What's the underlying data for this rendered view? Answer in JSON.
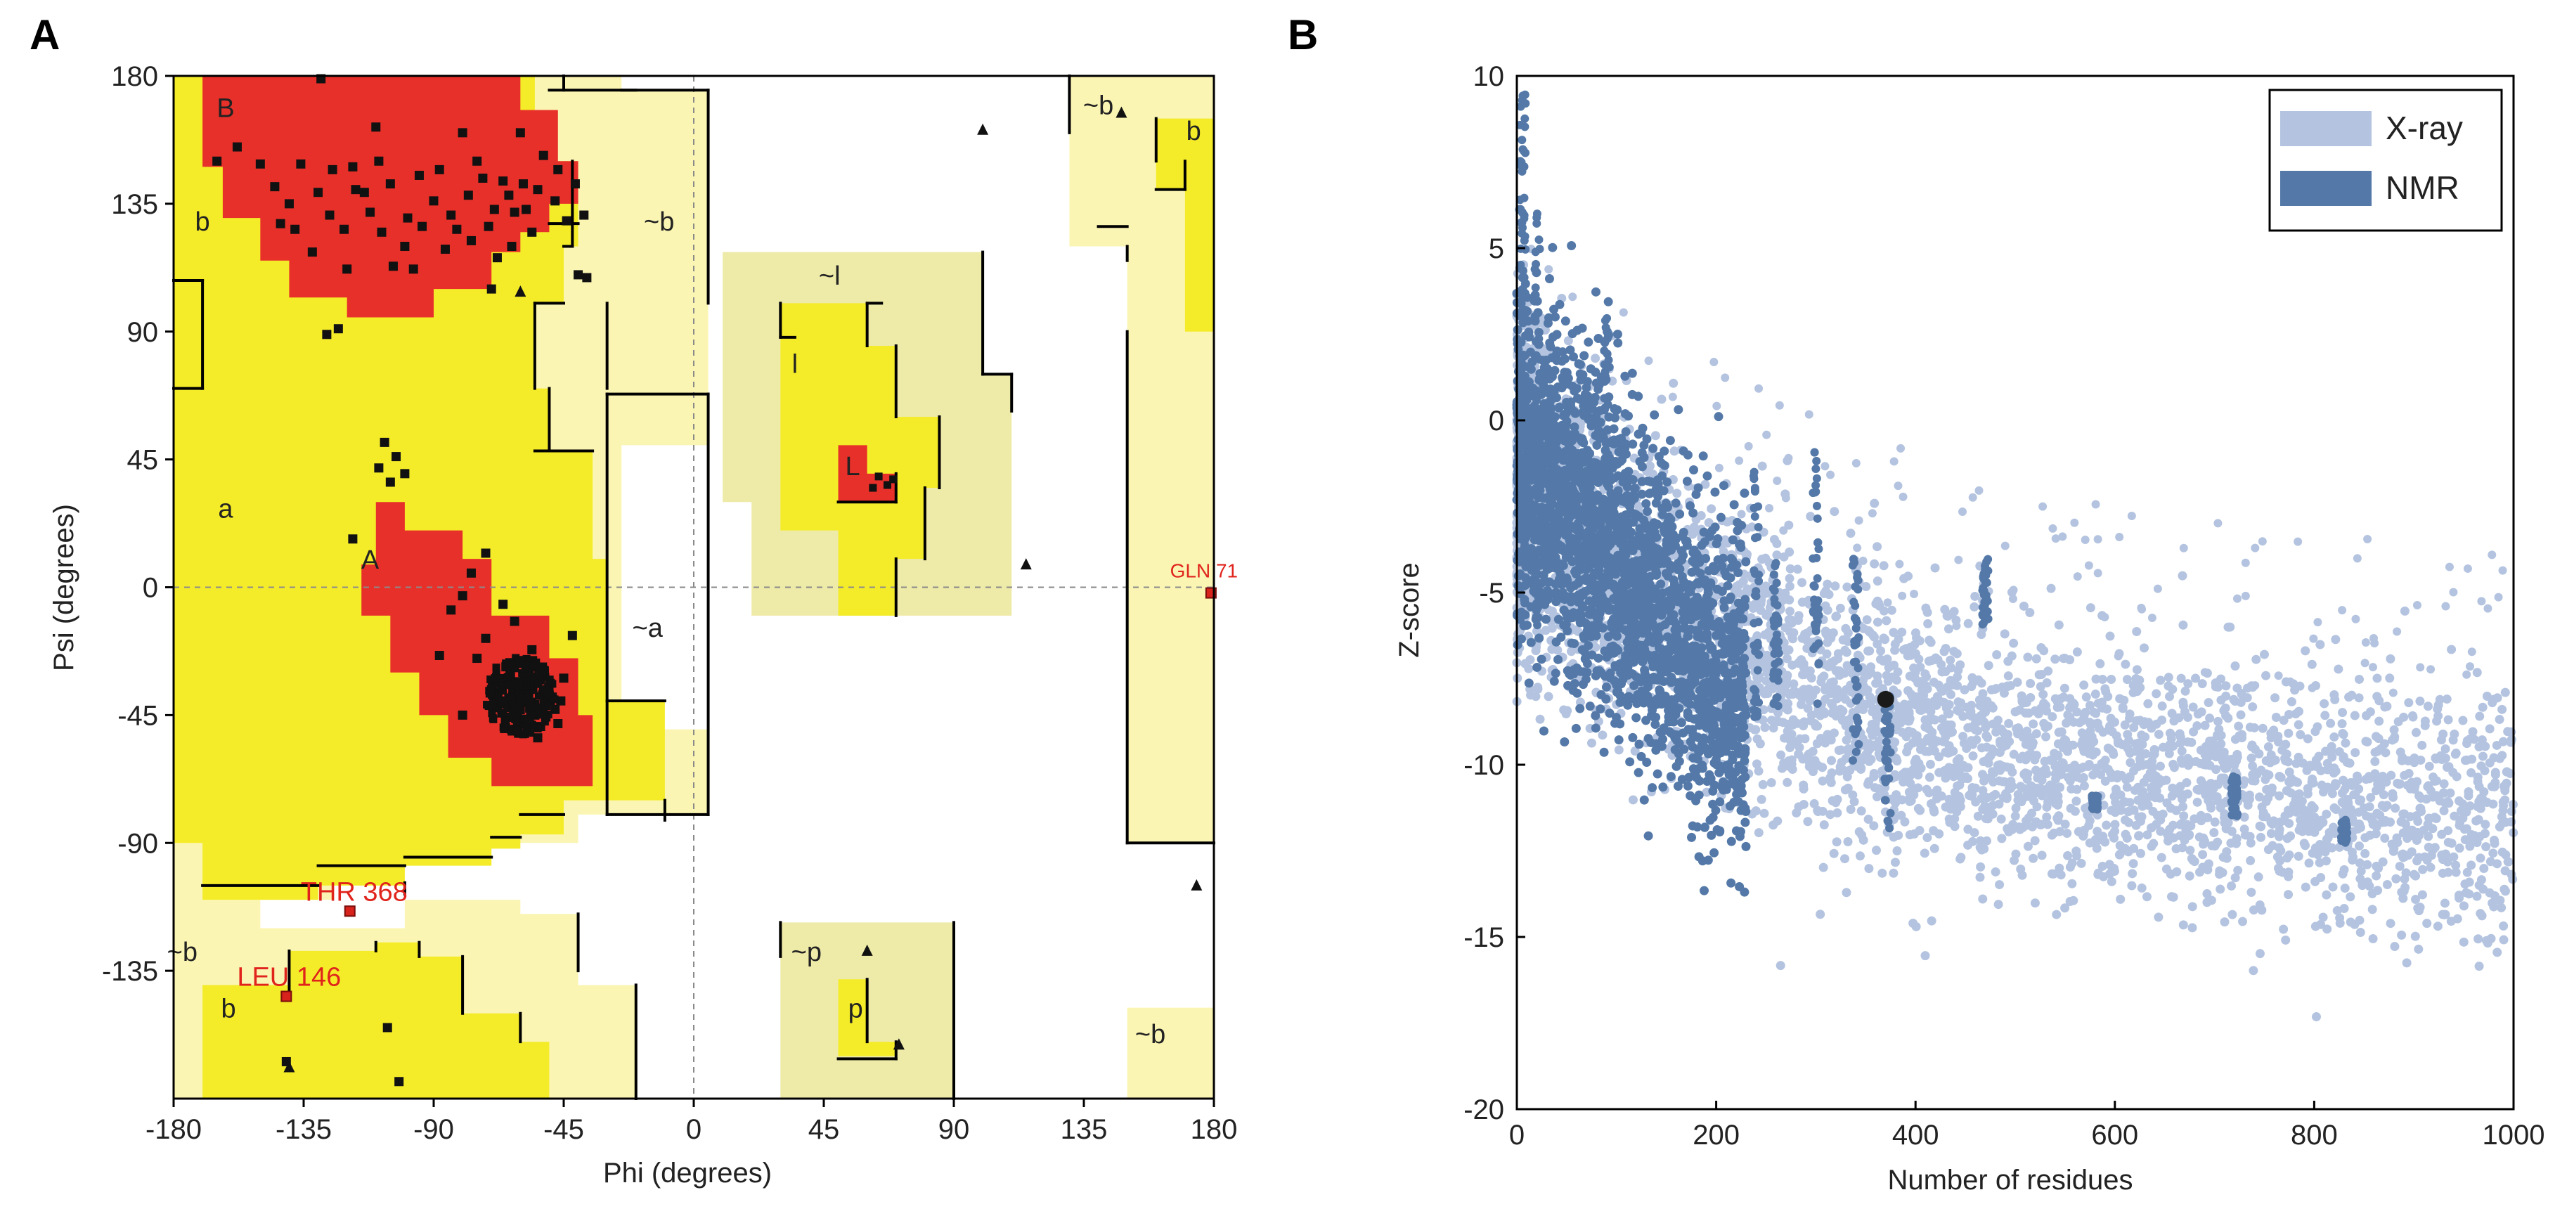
{
  "chart_data": [
    {
      "type": "scatter",
      "panel_label": "A",
      "xlabel": "Phi (degrees)",
      "ylabel": "Psi (degrees)",
      "xlim": [
        -180,
        180
      ],
      "ylim": [
        -180,
        180
      ],
      "xticks": [
        "-180",
        "-135",
        "-90",
        "-45",
        "0",
        "45",
        "90",
        "135",
        "180"
      ],
      "yticks": [
        "180",
        "135",
        "90",
        "45",
        "0",
        "-45",
        "-90",
        "-135"
      ],
      "xtick_values": [
        -180,
        -135,
        -90,
        -45,
        0,
        45,
        90,
        135,
        180
      ],
      "ytick_values": [
        180,
        135,
        90,
        45,
        0,
        -45,
        -90,
        -135
      ],
      "region_labels": [
        {
          "text": "B",
          "phi": -162,
          "psi": 168
        },
        {
          "text": "b",
          "phi": -170,
          "psi": 128
        },
        {
          "text": "~b",
          "phi": -12,
          "psi": 128
        },
        {
          "text": "~l",
          "phi": 47,
          "psi": 109
        },
        {
          "text": "l",
          "phi": 35,
          "psi": 78
        },
        {
          "text": "L",
          "phi": 55,
          "psi": 42
        },
        {
          "text": "a",
          "phi": -162,
          "psi": 27
        },
        {
          "text": "A",
          "phi": -112,
          "psi": 9
        },
        {
          "text": "~a",
          "phi": -16,
          "psi": -15
        },
        {
          "text": "~b",
          "phi": 140,
          "psi": 169
        },
        {
          "text": "b",
          "phi": 173,
          "psi": 160
        },
        {
          "text": "~b",
          "phi": -177,
          "psi": -129
        },
        {
          "text": "b",
          "phi": -161,
          "psi": -149
        },
        {
          "text": "~p",
          "phi": 39,
          "psi": -129
        },
        {
          "text": "p",
          "phi": 56,
          "psi": -149
        },
        {
          "text": "~b",
          "phi": 158,
          "psi": -158
        }
      ],
      "outliers": [
        {
          "label": "GLN 71",
          "phi": 179,
          "psi": -2
        },
        {
          "label": "THR 368",
          "phi": -119,
          "psi": -114
        },
        {
          "label": "LEU 146",
          "phi": -141,
          "psi": -144
        }
      ],
      "triangles": [
        {
          "phi": 100,
          "psi": 161
        },
        {
          "phi": 148,
          "psi": 167
        },
        {
          "phi": -60,
          "psi": 104
        },
        {
          "phi": 115,
          "psi": 8
        },
        {
          "phi": 174,
          "psi": -105
        },
        {
          "phi": 60,
          "psi": -128
        },
        {
          "phi": 71,
          "psi": -161
        },
        {
          "phi": -140,
          "psi": -169
        }
      ],
      "residues_B": [
        [
          -129,
          179
        ],
        [
          -165,
          150
        ],
        [
          -158,
          155
        ],
        [
          -150,
          149
        ],
        [
          -145,
          141
        ],
        [
          -140,
          135
        ],
        [
          -138,
          126
        ],
        [
          -132,
          118
        ],
        [
          -125,
          147
        ],
        [
          -121,
          126
        ],
        [
          -117,
          140
        ],
        [
          -112,
          132
        ],
        [
          -108,
          125
        ],
        [
          -104,
          113
        ],
        [
          -99,
          130
        ],
        [
          -95,
          145
        ],
        [
          -90,
          136
        ],
        [
          -86,
          119
        ],
        [
          -82,
          126
        ],
        [
          -78,
          138
        ],
        [
          -75,
          150
        ],
        [
          -71,
          127
        ],
        [
          -68,
          116
        ],
        [
          -66,
          143
        ],
        [
          -62,
          132
        ],
        [
          -59,
          142
        ],
        [
          -56,
          125
        ],
        [
          -52,
          152
        ],
        [
          -48,
          136
        ],
        [
          -44,
          129
        ],
        [
          -41,
          142
        ],
        [
          -38,
          131
        ],
        [
          -60,
          160
        ],
        [
          -80,
          160
        ],
        [
          -110,
          162
        ],
        [
          -120,
          112
        ],
        [
          -123,
          91
        ],
        [
          -70,
          105
        ],
        [
          -40,
          110
        ],
        [
          -136,
          149
        ],
        [
          -130,
          139
        ],
        [
          -126,
          131
        ],
        [
          -118,
          148
        ],
        [
          -114,
          139
        ],
        [
          -105,
          142
        ],
        [
          -100,
          120
        ],
        [
          -94,
          127
        ],
        [
          -88,
          147
        ],
        [
          -84,
          131
        ],
        [
          -73,
          144
        ],
        [
          -64,
          138
        ],
        [
          -58,
          133
        ],
        [
          -54,
          140
        ],
        [
          -47,
          147
        ],
        [
          -143,
          128
        ],
        [
          -109,
          150
        ],
        [
          -97,
          112
        ],
        [
          -77,
          122
        ],
        [
          -69,
          133
        ],
        [
          -63,
          120
        ]
      ],
      "residues_A": [
        [
          -107,
          51
        ],
        [
          -103,
          46
        ],
        [
          -109,
          42
        ],
        [
          -105,
          37
        ],
        [
          -100,
          40
        ],
        [
          -72,
          12
        ],
        [
          -77,
          5
        ],
        [
          -80,
          -3
        ],
        [
          -66,
          -6
        ],
        [
          -62,
          -12
        ],
        [
          -72,
          -18
        ],
        [
          -75,
          -25
        ],
        [
          -56,
          -22
        ],
        [
          -52,
          -30
        ],
        [
          -60,
          -35
        ],
        [
          -65,
          -28
        ],
        [
          -58,
          -40
        ],
        [
          -50,
          -38
        ],
        [
          -68,
          -42
        ],
        [
          -55,
          -45
        ],
        [
          -47,
          -48
        ],
        [
          -63,
          -50
        ],
        [
          -45,
          -32
        ],
        [
          -70,
          -36
        ],
        [
          -54,
          -53
        ],
        [
          -59,
          -47
        ],
        [
          -48,
          -43
        ],
        [
          -61,
          -44
        ],
        [
          -57,
          -32
        ],
        [
          -52,
          -37
        ],
        [
          -46,
          -40
        ],
        [
          -65,
          -33
        ],
        [
          -58,
          -27
        ],
        [
          -53,
          -49
        ],
        [
          -64,
          -39
        ],
        [
          -84,
          -8
        ],
        [
          -88,
          -24
        ],
        [
          -42,
          -17
        ],
        [
          -80,
          -45
        ],
        [
          -118,
          17
        ]
      ],
      "residues_L": [
        [
          64,
          39
        ],
        [
          67,
          36
        ],
        [
          62,
          35
        ],
        [
          69,
          38
        ]
      ],
      "residues_other": [
        [
          -127,
          89
        ],
        [
          -37,
          109
        ],
        [
          -141,
          -167
        ],
        [
          -106,
          -155
        ],
        [
          -102,
          -174
        ]
      ]
    },
    {
      "type": "scatter",
      "panel_label": "B",
      "xlabel": "Number of residues",
      "ylabel": "Z-score",
      "xlim": [
        0,
        1000
      ],
      "ylim": [
        -20,
        10
      ],
      "xticks": [
        "0",
        "200",
        "400",
        "600",
        "800",
        "1000"
      ],
      "yticks": [
        "10",
        "5",
        "0",
        "-5",
        "-10",
        "-15",
        "-20"
      ],
      "xtick_values": [
        0,
        200,
        400,
        600,
        800,
        1000
      ],
      "ytick_values": [
        10,
        5,
        0,
        -5,
        -10,
        -15,
        -20
      ],
      "series": [
        {
          "name": "X-ray",
          "color": "#b4c4e0"
        },
        {
          "name": "NMR",
          "color": "#5479a8"
        }
      ],
      "highlight": {
        "x": 370,
        "y": -8.1,
        "color": "#1a1a1a"
      },
      "legend_position": "top-right"
    }
  ]
}
